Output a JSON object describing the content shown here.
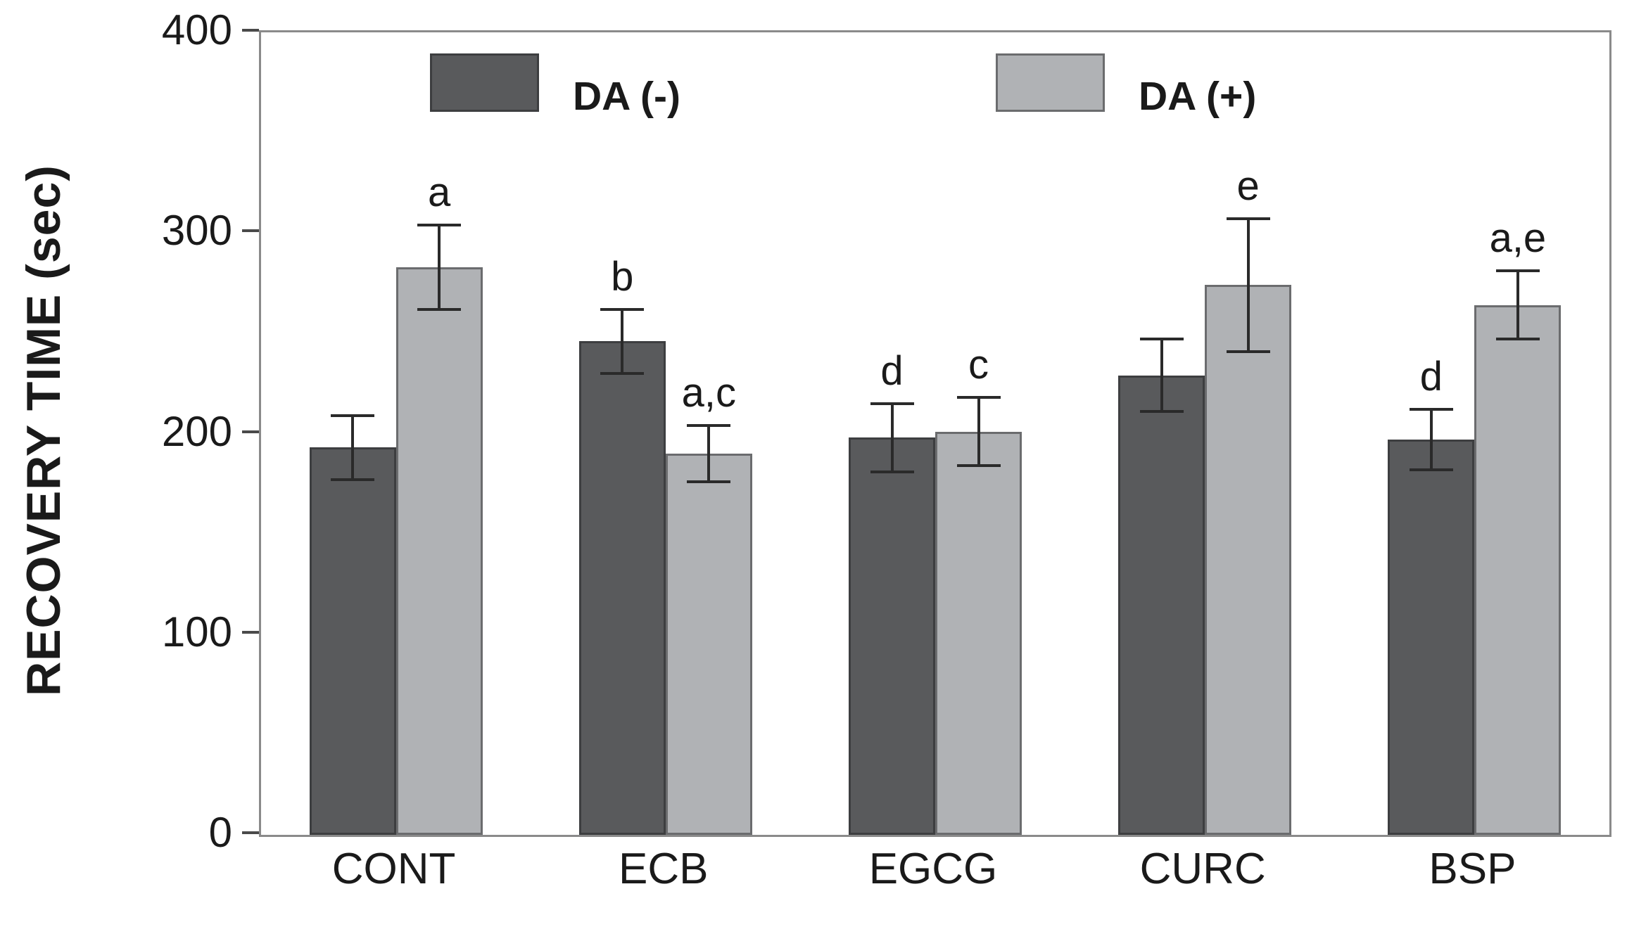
{
  "chart_data": {
    "type": "bar",
    "title": "",
    "xlabel": "",
    "ylabel": "RECOVERY TIME (sec)",
    "ylim": [
      0,
      400
    ],
    "yticks": [
      0,
      100,
      200,
      300,
      400
    ],
    "grid": false,
    "legend_position": "top-inside",
    "categories": [
      "CONT",
      "ECB",
      "EGCG",
      "CURC",
      "BSP"
    ],
    "series": [
      {
        "name": "DA (-)",
        "fill_color": "#595a5c",
        "border_color": "#3d3e40",
        "values": [
          193,
          246,
          198,
          229,
          197
        ],
        "errors": [
          16,
          16,
          17,
          18,
          15
        ],
        "sig_letters": [
          "",
          "b",
          "d",
          "",
          "d"
        ]
      },
      {
        "name": "DA (+)",
        "fill_color": "#b0b2b5",
        "border_color": "#6b6c6e",
        "values": [
          283,
          190,
          201,
          274,
          264
        ],
        "errors": [
          21,
          14,
          17,
          33,
          17
        ],
        "sig_letters": [
          "a",
          "a,c",
          "c",
          "e",
          "a,e"
        ]
      }
    ]
  }
}
